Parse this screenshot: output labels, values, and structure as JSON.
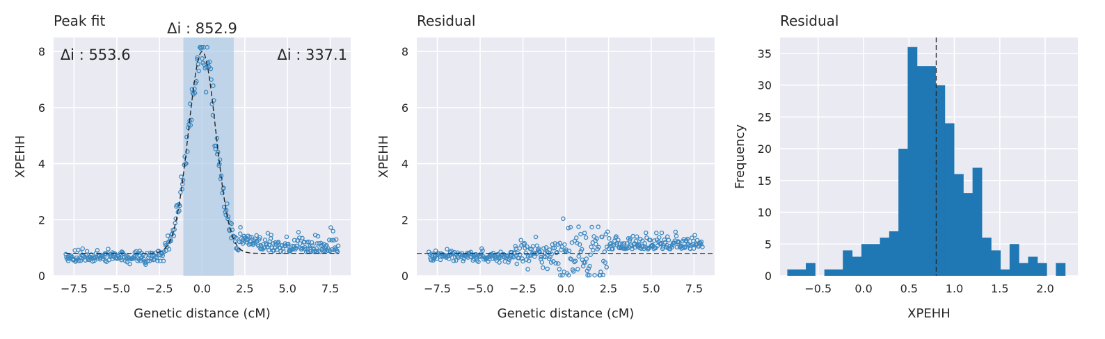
{
  "colors": {
    "panel_bg": "#eaeaf2",
    "grid": "#ffffff",
    "points": "#3a87c0",
    "bars": "#1f77b4",
    "fit_line": "#262626",
    "peak_band": "#a9c8e3"
  },
  "chart_data": [
    {
      "type": "scatter",
      "title": "Peak fit",
      "xlabel": "Genetic distance (cM)",
      "ylabel": "XPEHH",
      "xlim": [
        -8.7,
        8.7
      ],
      "ylim": [
        0,
        8.5
      ],
      "xticks": [
        -7.5,
        -5.0,
        -2.5,
        0.0,
        2.5,
        5.0,
        7.5
      ],
      "xtick_labels": [
        "−7.5",
        "−5.0",
        "−2.5",
        "0.0",
        "2.5",
        "5.0",
        "7.5"
      ],
      "yticks": [
        0,
        2,
        4,
        6,
        8
      ],
      "ytick_labels": [
        "0",
        "2",
        "4",
        "6",
        "8"
      ],
      "grid": true,
      "peak_region": [
        -1.1,
        1.85
      ],
      "annotations": [
        {
          "text": "Δi : 852.9",
          "x": 0.0,
          "y": 8.85,
          "anchor": "middle"
        },
        {
          "text": "Δi : 553.6",
          "x": -8.3,
          "y": 7.9,
          "anchor": "start"
        },
        {
          "text": "Δi : 337.1",
          "x": 8.5,
          "y": 7.9,
          "anchor": "end"
        }
      ],
      "fit_curve": {
        "type": "gaussian",
        "baseline": 0.8,
        "amplitude": 7.2,
        "center": 0.0,
        "sigma": 0.8
      },
      "points_summary": {
        "n": 400,
        "x_range": [
          -8.0,
          8.0
        ],
        "noise": "scattered around fit curve, raised tail 1.0–1.6 for x > 2"
      }
    },
    {
      "type": "scatter",
      "title": "Residual",
      "xlabel": "Genetic distance (cM)",
      "ylabel": "XPEHH",
      "xlim": [
        -8.7,
        8.7
      ],
      "ylim": [
        0,
        8.5
      ],
      "xticks": [
        -7.5,
        -5.0,
        -2.5,
        0.0,
        2.5,
        5.0,
        7.5
      ],
      "xtick_labels": [
        "−7.5",
        "−5.0",
        "−2.5",
        "0.0",
        "2.5",
        "5.0",
        "7.5"
      ],
      "yticks": [
        0,
        2,
        4,
        6,
        8
      ],
      "ytick_labels": [
        "0",
        "2",
        "4",
        "6",
        "8"
      ],
      "grid": true,
      "reference_line_y": 0.8,
      "points_summary": {
        "n": 400,
        "x_range": [
          -8.0,
          8.0
        ],
        "range_y": [
          0.0,
          2.3
        ]
      }
    },
    {
      "type": "bar",
      "title": "Residual",
      "xlabel": "XPEHH",
      "ylabel": "Frequency",
      "xlim": [
        -0.92,
        2.36
      ],
      "ylim": [
        0,
        37.5
      ],
      "xticks": [
        -0.5,
        0.0,
        0.5,
        1.0,
        1.5,
        2.0
      ],
      "xtick_labels": [
        "−0.5",
        "0.0",
        "0.5",
        "1.0",
        "1.5",
        "2.0"
      ],
      "yticks": [
        0,
        5,
        10,
        15,
        20,
        25,
        30,
        35
      ],
      "ytick_labels": [
        "0",
        "5",
        "10",
        "15",
        "20",
        "25",
        "30",
        "35"
      ],
      "grid": true,
      "bin_start": -0.84,
      "bin_width": 0.102,
      "counts": [
        1,
        1,
        2,
        0,
        1,
        1,
        4,
        3,
        5,
        5,
        6,
        7,
        20,
        36,
        33,
        33,
        30,
        24,
        16,
        13,
        17,
        6,
        4,
        1,
        5,
        2,
        3,
        2,
        0,
        2
      ],
      "reference_line_x": 0.8
    }
  ]
}
